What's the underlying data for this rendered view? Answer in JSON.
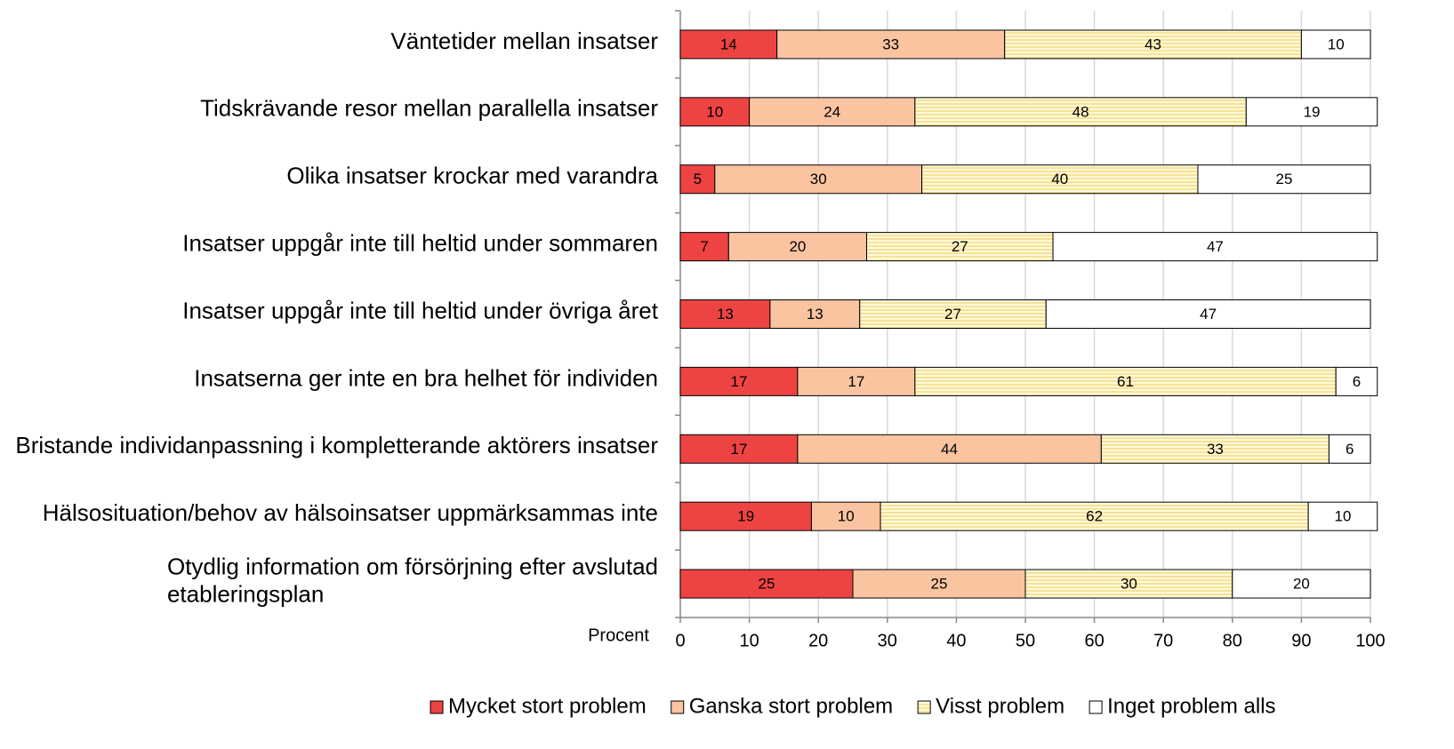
{
  "chart_data": {
    "type": "stacked-barh",
    "x_label": "Procent",
    "categories": [
      "Väntetider mellan insatser",
      "Tidskrävande resor mellan parallella insatser",
      "Olika insatser krockar med varandra",
      "Insatser uppgår inte till heltid under sommaren",
      "Insatser uppgår inte till heltid under övriga året",
      "Insatserna ger inte en bra helhet för individen",
      "Bristande individanpassning i kompletterande aktörers insatser",
      "Hälsosituation/behov av hälsoinsatser uppmärksammas inte",
      "Otydlig information om försörjning efter avslutad etableringsplan"
    ],
    "series": [
      {
        "name": "Mycket stort problem",
        "color": "#ee4343",
        "values": [
          14,
          10,
          5,
          7,
          13,
          17,
          17,
          19,
          25
        ]
      },
      {
        "name": "Ganska stort problem",
        "color": "#fac4a0",
        "values": [
          33,
          24,
          30,
          20,
          13,
          17,
          44,
          10,
          25
        ]
      },
      {
        "name": "Visst problem",
        "color": "#fffbd8",
        "pattern": "horizontal-lines",
        "values": [
          43,
          48,
          40,
          27,
          27,
          61,
          33,
          62,
          30
        ]
      },
      {
        "name": "Inget problem alls",
        "color": "#ffffff",
        "values": [
          10,
          19,
          25,
          47,
          47,
          6,
          6,
          10,
          20
        ]
      }
    ],
    "xlim": [
      0,
      100
    ],
    "xticks": [
      0,
      10,
      20,
      30,
      40,
      50,
      60,
      70,
      80,
      90,
      100
    ],
    "grid": true,
    "legend": "bottom"
  }
}
